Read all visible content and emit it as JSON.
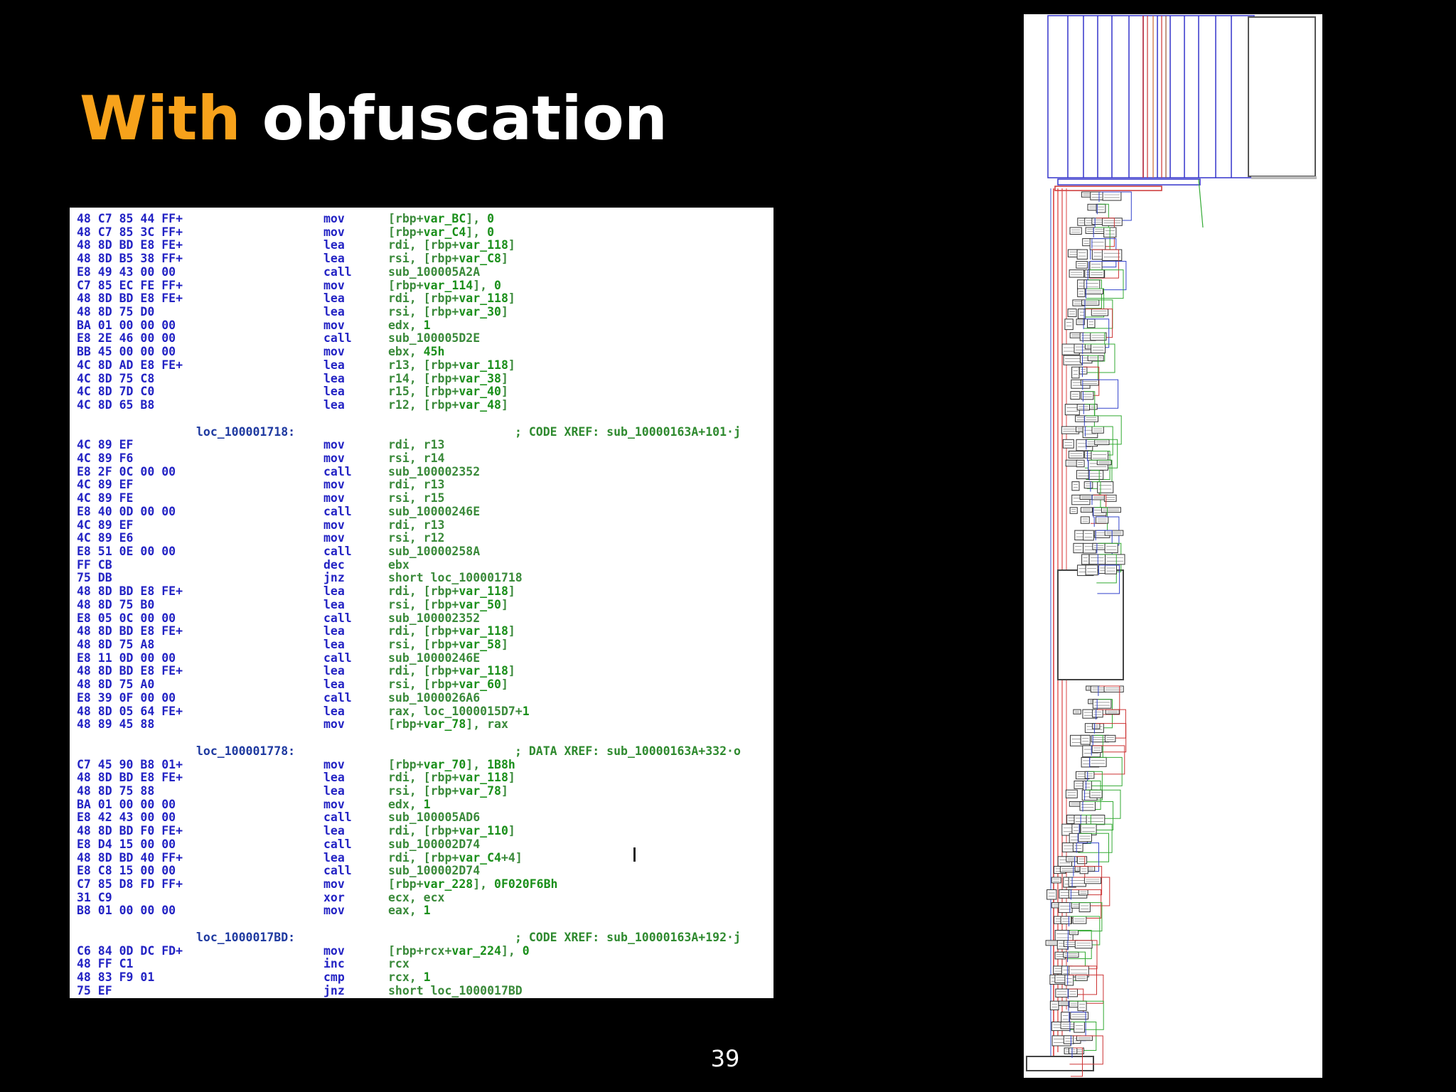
{
  "slide": {
    "title_highlight": "With",
    "title_rest": " obfuscation",
    "page_number": "39",
    "colors": {
      "highlight": "#f7a21b",
      "background": "#000000",
      "text": "#ffffff"
    }
  },
  "listing": [
    {
      "hex": "48 C7 85 44 FF+",
      "mn": "mov",
      "ops": [
        [
          "o",
          "[rbp+"
        ],
        [
          "v",
          "var_BC"
        ],
        [
          "o",
          "], "
        ],
        [
          "n",
          "0"
        ]
      ]
    },
    {
      "hex": "48 C7 85 3C FF+",
      "mn": "mov",
      "ops": [
        [
          "o",
          "[rbp+"
        ],
        [
          "v",
          "var_C4"
        ],
        [
          "o",
          "], "
        ],
        [
          "n",
          "0"
        ]
      ]
    },
    {
      "hex": "48 8D BD E8 FE+",
      "mn": "lea",
      "ops": [
        [
          "o",
          "rdi, [rbp+"
        ],
        [
          "v",
          "var_118"
        ],
        [
          "o",
          "]"
        ]
      ]
    },
    {
      "hex": "48 8D B5 38 FF+",
      "mn": "lea",
      "ops": [
        [
          "o",
          "rsi, [rbp+"
        ],
        [
          "v",
          "var_C8"
        ],
        [
          "o",
          "]"
        ]
      ]
    },
    {
      "hex": "E8 49 43 00 00",
      "mn": "call",
      "ops": [
        [
          "o",
          "sub_100005A2A"
        ]
      ]
    },
    {
      "hex": "C7 85 EC FE FF+",
      "mn": "mov",
      "ops": [
        [
          "o",
          "[rbp+"
        ],
        [
          "v",
          "var_114"
        ],
        [
          "o",
          "], "
        ],
        [
          "n",
          "0"
        ]
      ]
    },
    {
      "hex": "48 8D BD E8 FE+",
      "mn": "lea",
      "ops": [
        [
          "o",
          "rdi, [rbp+"
        ],
        [
          "v",
          "var_118"
        ],
        [
          "o",
          "]"
        ]
      ]
    },
    {
      "hex": "48 8D 75 D0",
      "mn": "lea",
      "ops": [
        [
          "o",
          "rsi, [rbp+"
        ],
        [
          "v",
          "var_30"
        ],
        [
          "o",
          "]"
        ]
      ]
    },
    {
      "hex": "BA 01 00 00 00",
      "mn": "mov",
      "ops": [
        [
          "o",
          "edx, "
        ],
        [
          "n",
          "1"
        ]
      ]
    },
    {
      "hex": "E8 2E 46 00 00",
      "mn": "call",
      "ops": [
        [
          "o",
          "sub_100005D2E"
        ]
      ]
    },
    {
      "hex": "BB 45 00 00 00",
      "mn": "mov",
      "ops": [
        [
          "o",
          "ebx, "
        ],
        [
          "n",
          "45h"
        ]
      ]
    },
    {
      "hex": "4C 8D AD E8 FE+",
      "mn": "lea",
      "ops": [
        [
          "o",
          "r13, [rbp+"
        ],
        [
          "v",
          "var_118"
        ],
        [
          "o",
          "]"
        ]
      ]
    },
    {
      "hex": "4C 8D 75 C8",
      "mn": "lea",
      "ops": [
        [
          "o",
          "r14, [rbp+"
        ],
        [
          "v",
          "var_38"
        ],
        [
          "o",
          "]"
        ]
      ]
    },
    {
      "hex": "4C 8D 7D C0",
      "mn": "lea",
      "ops": [
        [
          "o",
          "r15, [rbp+"
        ],
        [
          "v",
          "var_40"
        ],
        [
          "o",
          "]"
        ]
      ]
    },
    {
      "hex": "4C 8D 65 B8",
      "mn": "lea",
      "ops": [
        [
          "o",
          "r12, [rbp+"
        ],
        [
          "v",
          "var_48"
        ],
        [
          "o",
          "]"
        ]
      ]
    },
    {
      "blank": true
    },
    {
      "label": "loc_100001718:",
      "xref": "; CODE XREF: sub_10000163A+101·j"
    },
    {
      "hex": "4C 89 EF",
      "mn": "mov",
      "ops": [
        [
          "o",
          "rdi, r13"
        ]
      ]
    },
    {
      "hex": "4C 89 F6",
      "mn": "mov",
      "ops": [
        [
          "o",
          "rsi, r14"
        ]
      ]
    },
    {
      "hex": "E8 2F 0C 00 00",
      "mn": "call",
      "ops": [
        [
          "o",
          "sub_100002352"
        ]
      ]
    },
    {
      "hex": "4C 89 EF",
      "mn": "mov",
      "ops": [
        [
          "o",
          "rdi, r13"
        ]
      ]
    },
    {
      "hex": "4C 89 FE",
      "mn": "mov",
      "ops": [
        [
          "o",
          "rsi, r15"
        ]
      ]
    },
    {
      "hex": "E8 40 0D 00 00",
      "mn": "call",
      "ops": [
        [
          "o",
          "sub_10000246E"
        ]
      ]
    },
    {
      "hex": "4C 89 EF",
      "mn": "mov",
      "ops": [
        [
          "o",
          "rdi, r13"
        ]
      ]
    },
    {
      "hex": "4C 89 E6",
      "mn": "mov",
      "ops": [
        [
          "o",
          "rsi, r12"
        ]
      ]
    },
    {
      "hex": "E8 51 0E 00 00",
      "mn": "call",
      "ops": [
        [
          "o",
          "sub_10000258A"
        ]
      ]
    },
    {
      "hex": "FF CB",
      "mn": "dec",
      "ops": [
        [
          "o",
          "ebx"
        ]
      ]
    },
    {
      "hex": "75 DB",
      "mn": "jnz",
      "ops": [
        [
          "o",
          "short loc_100001718"
        ]
      ]
    },
    {
      "hex": "48 8D BD E8 FE+",
      "mn": "lea",
      "ops": [
        [
          "o",
          "rdi, [rbp+"
        ],
        [
          "v",
          "var_118"
        ],
        [
          "o",
          "]"
        ]
      ]
    },
    {
      "hex": "48 8D 75 B0",
      "mn": "lea",
      "ops": [
        [
          "o",
          "rsi, [rbp+"
        ],
        [
          "v",
          "var_50"
        ],
        [
          "o",
          "]"
        ]
      ]
    },
    {
      "hex": "E8 05 0C 00 00",
      "mn": "call",
      "ops": [
        [
          "o",
          "sub_100002352"
        ]
      ]
    },
    {
      "hex": "48 8D BD E8 FE+",
      "mn": "lea",
      "ops": [
        [
          "o",
          "rdi, [rbp+"
        ],
        [
          "v",
          "var_118"
        ],
        [
          "o",
          "]"
        ]
      ]
    },
    {
      "hex": "48 8D 75 A8",
      "mn": "lea",
      "ops": [
        [
          "o",
          "rsi, [rbp+"
        ],
        [
          "v",
          "var_58"
        ],
        [
          "o",
          "]"
        ]
      ]
    },
    {
      "hex": "E8 11 0D 00 00",
      "mn": "call",
      "ops": [
        [
          "o",
          "sub_10000246E"
        ]
      ]
    },
    {
      "hex": "48 8D BD E8 FE+",
      "mn": "lea",
      "ops": [
        [
          "o",
          "rdi, [rbp+"
        ],
        [
          "v",
          "var_118"
        ],
        [
          "o",
          "]"
        ]
      ]
    },
    {
      "hex": "48 8D 75 A0",
      "mn": "lea",
      "ops": [
        [
          "o",
          "rsi, [rbp+"
        ],
        [
          "v",
          "var_60"
        ],
        [
          "o",
          "]"
        ]
      ]
    },
    {
      "hex": "E8 39 0F 00 00",
      "mn": "call",
      "ops": [
        [
          "o",
          "sub_1000026A6"
        ]
      ]
    },
    {
      "hex": "48 8D 05 64 FE+",
      "mn": "lea",
      "ops": [
        [
          "o",
          "rax, loc_1000015D7+"
        ],
        [
          "n",
          "1"
        ]
      ]
    },
    {
      "hex": "48 89 45 88",
      "mn": "mov",
      "ops": [
        [
          "o",
          "[rbp+"
        ],
        [
          "v",
          "var_78"
        ],
        [
          "o",
          "], rax"
        ]
      ]
    },
    {
      "blank": true
    },
    {
      "label": "loc_100001778:",
      "xref": "; DATA XREF: sub_10000163A+332·o",
      "dx": true
    },
    {
      "hex": "C7 45 90 B8 01+",
      "mn": "mov",
      "ops": [
        [
          "o",
          "[rbp+"
        ],
        [
          "v",
          "var_70"
        ],
        [
          "o",
          "], "
        ],
        [
          "n",
          "1B8h"
        ]
      ]
    },
    {
      "hex": "48 8D BD E8 FE+",
      "mn": "lea",
      "ops": [
        [
          "o",
          "rdi, [rbp+"
        ],
        [
          "v",
          "var_118"
        ],
        [
          "o",
          "]"
        ]
      ]
    },
    {
      "hex": "48 8D 75 88",
      "mn": "lea",
      "ops": [
        [
          "o",
          "rsi, [rbp+"
        ],
        [
          "v",
          "var_78"
        ],
        [
          "o",
          "]"
        ]
      ]
    },
    {
      "hex": "BA 01 00 00 00",
      "mn": "mov",
      "ops": [
        [
          "o",
          "edx, "
        ],
        [
          "n",
          "1"
        ]
      ]
    },
    {
      "hex": "E8 42 43 00 00",
      "mn": "call",
      "ops": [
        [
          "o",
          "sub_100005AD6"
        ]
      ]
    },
    {
      "hex": "48 8D BD F0 FE+",
      "mn": "lea",
      "ops": [
        [
          "o",
          "rdi, [rbp+"
        ],
        [
          "v",
          "var_110"
        ],
        [
          "o",
          "]"
        ]
      ]
    },
    {
      "hex": "E8 D4 15 00 00",
      "mn": "call",
      "ops": [
        [
          "o",
          "sub_100002D74"
        ]
      ]
    },
    {
      "hex": "48 8D BD 40 FF+",
      "mn": "lea",
      "ops": [
        [
          "o",
          "rdi, [rbp+"
        ],
        [
          "v",
          "var_C4"
        ],
        [
          "o",
          "+4]"
        ]
      ]
    },
    {
      "hex": "E8 C8 15 00 00",
      "mn": "call",
      "ops": [
        [
          "o",
          "sub_100002D74"
        ]
      ]
    },
    {
      "hex": "C7 85 D8 FD FF+",
      "mn": "mov",
      "ops": [
        [
          "o",
          "[rbp+"
        ],
        [
          "v",
          "var_228"
        ],
        [
          "o",
          "], "
        ],
        [
          "n",
          "0F020F6Bh"
        ]
      ]
    },
    {
      "hex": "31 C9",
      "mn": "xor",
      "ops": [
        [
          "o",
          "ecx, ecx"
        ]
      ]
    },
    {
      "hex": "B8 01 00 00 00",
      "mn": "mov",
      "ops": [
        [
          "o",
          "eax, "
        ],
        [
          "n",
          "1"
        ]
      ]
    },
    {
      "blank": true
    },
    {
      "label": "loc_1000017BD:",
      "xref": "; CODE XREF: sub_10000163A+192·j"
    },
    {
      "hex": "C6 84 0D DC FD+",
      "mn": "mov",
      "ops": [
        [
          "o",
          "[rbp+rcx+"
        ],
        [
          "v",
          "var_224"
        ],
        [
          "o",
          "], "
        ],
        [
          "n",
          "0"
        ]
      ]
    },
    {
      "hex": "48 FF C1",
      "mn": "inc",
      "ops": [
        [
          "o",
          "rcx"
        ]
      ]
    },
    {
      "hex": "48 83 F9 01",
      "mn": "cmp",
      "ops": [
        [
          "o",
          "rcx, "
        ],
        [
          "n",
          "1"
        ]
      ]
    },
    {
      "hex": "75 EF",
      "mn": "jnz",
      "ops": [
        [
          "o",
          "short loc_1000017BD"
        ]
      ]
    }
  ]
}
